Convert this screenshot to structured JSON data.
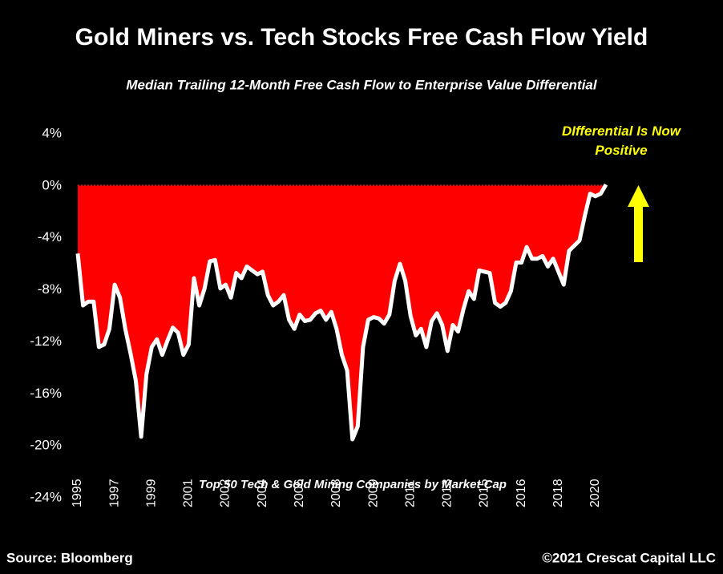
{
  "chart_data": {
    "type": "area",
    "title": "Gold Miners vs. Tech Stocks Free Cash Flow Yield",
    "subtitle": "Median Trailing 12-Month Free Cash Flow to Enterprise Value Differential",
    "annotation": "DIfferential Is Now Positive",
    "note": "Top 50 Tech & Gold Mining Companies by Market Cap",
    "source": "Source: Bloomberg",
    "copyright": "©2021 Crescat Capital LLC",
    "color": "#ff0000",
    "line_color": "#ffffff",
    "categories": [
      "1995",
      null,
      null,
      null,
      null,
      null,
      null,
      "1997",
      null,
      null,
      null,
      null,
      null,
      null,
      "1999",
      null,
      null,
      null,
      null,
      null,
      null,
      "2001",
      null,
      null,
      null,
      null,
      null,
      null,
      "2002",
      null,
      null,
      null,
      null,
      null,
      null,
      "2004",
      null,
      null,
      null,
      null,
      null,
      null,
      "2006",
      null,
      null,
      null,
      null,
      null,
      null,
      "2008",
      null,
      null,
      null,
      null,
      null,
      null,
      "2009",
      null,
      null,
      null,
      null,
      null,
      null,
      "2011",
      null,
      null,
      null,
      null,
      null,
      null,
      "2013",
      null,
      null,
      null,
      null,
      null,
      null,
      "2015",
      null,
      null,
      null,
      null,
      null,
      null,
      "2016",
      null,
      null,
      null,
      null,
      null,
      null,
      "2018",
      null,
      null,
      null,
      null,
      null,
      null,
      "2020",
      null,
      null
    ],
    "values": [
      -5.2,
      -9.2,
      -8.9,
      -8.9,
      -12.4,
      -12.2,
      -11.0,
      -7.6,
      -8.6,
      -11.0,
      -12.9,
      -15.0,
      -19.3,
      -14.5,
      -12.4,
      -11.8,
      -13.0,
      -11.9,
      -10.9,
      -11.3,
      -13.0,
      -12.2,
      -7.1,
      -9.2,
      -7.9,
      -5.8,
      -5.7,
      -7.9,
      -7.6,
      -8.6,
      -6.7,
      -7.1,
      -6.2,
      -6.5,
      -6.8,
      -6.6,
      -8.4,
      -9.2,
      -8.9,
      -8.4,
      -10.3,
      -11.0,
      -9.9,
      -10.4,
      -10.3,
      -9.8,
      -9.6,
      -10.3,
      -9.7,
      -11.0,
      -13.0,
      -14.2,
      -19.5,
      -18.5,
      -12.4,
      -10.3,
      -10.1,
      -10.2,
      -10.6,
      -9.9,
      -7.3,
      -6.0,
      -7.3,
      -10.0,
      -11.5,
      -11.0,
      -12.4,
      -10.4,
      -9.8,
      -10.7,
      -12.7,
      -10.7,
      -11.2,
      -9.5,
      -8.1,
      -8.7,
      -6.5,
      -6.6,
      -6.7,
      -9.0,
      -9.3,
      -9.0,
      -8.1,
      -5.9,
      -5.9,
      -4.7,
      -5.6,
      -5.6,
      -5.4,
      -6.2,
      -5.6,
      -6.6,
      -7.6,
      -5.0,
      -4.6,
      -4.2,
      -2.3,
      -0.6,
      -0.8,
      -0.6,
      0.1
    ],
    "ylim": [
      -24,
      4
    ],
    "yticks": [
      {
        "value": 4,
        "label": "4%"
      },
      {
        "value": 0,
        "label": "0%"
      },
      {
        "value": -4,
        "label": "-4%"
      },
      {
        "value": -8,
        "label": "-8%"
      },
      {
        "value": -12,
        "label": "-12%"
      },
      {
        "value": -16,
        "label": "-16%"
      },
      {
        "value": -20,
        "label": "-20%"
      },
      {
        "value": -24,
        "label": "-24%"
      }
    ]
  }
}
